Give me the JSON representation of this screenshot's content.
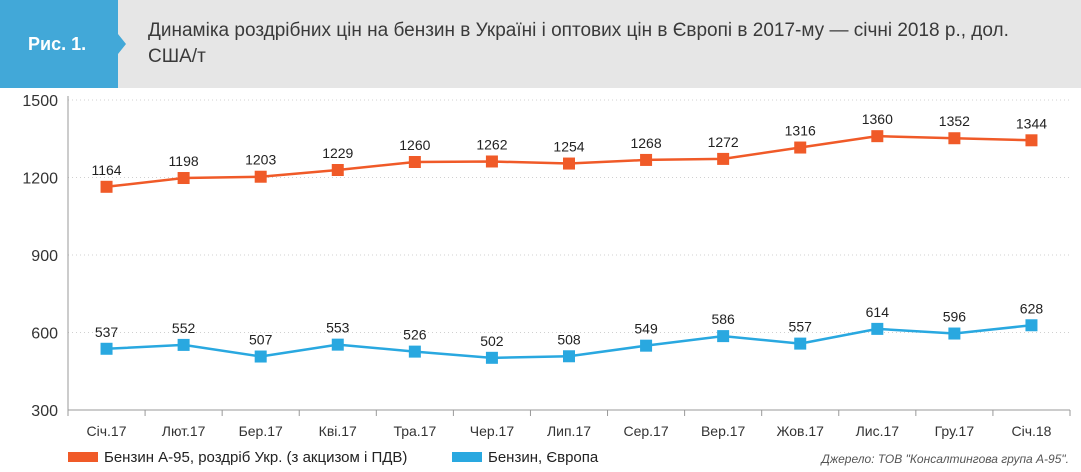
{
  "figure_label": "Рис. 1.",
  "title": "Динаміка роздрібних цін на бензин в Україні і оптових цін в Європі в 2017-му — січні 2018 р., дол. США/т",
  "source": "Джерело: ТОВ \"Консалтингова група А-95\".",
  "colors": {
    "series_ukr": "#f05a28",
    "series_eu": "#29a8e0",
    "badge": "#42a8d8",
    "header": "#e6e6e6"
  },
  "chart_data": {
    "type": "line",
    "title": "Динаміка роздрібних цін на бензин в Україні і оптових цін в Європі в 2017-му — січні 2018 р., дол. США/т",
    "categories": [
      "Січ.17",
      "Лют.17",
      "Бер.17",
      "Кві.17",
      "Тра.17",
      "Чер.17",
      "Лип.17",
      "Сер.17",
      "Вер.17",
      "Жов.17",
      "Лис.17",
      "Гру.17",
      "Січ.18"
    ],
    "ylim": [
      300,
      1500
    ],
    "yticks": [
      300,
      600,
      900,
      1200,
      1500
    ],
    "grid": true,
    "legend": "bottom-left",
    "series": [
      {
        "name": "Бензин А-95, роздріб Укр. (з акцизом і ПДВ)",
        "color": "#f05a28",
        "values": [
          1164,
          1198,
          1203,
          1229,
          1260,
          1262,
          1254,
          1268,
          1272,
          1316,
          1360,
          1352,
          1344
        ]
      },
      {
        "name": "Бензин, Європа",
        "color": "#29a8e0",
        "values": [
          537,
          552,
          507,
          553,
          526,
          502,
          508,
          549,
          586,
          557,
          614,
          596,
          628
        ]
      }
    ]
  }
}
